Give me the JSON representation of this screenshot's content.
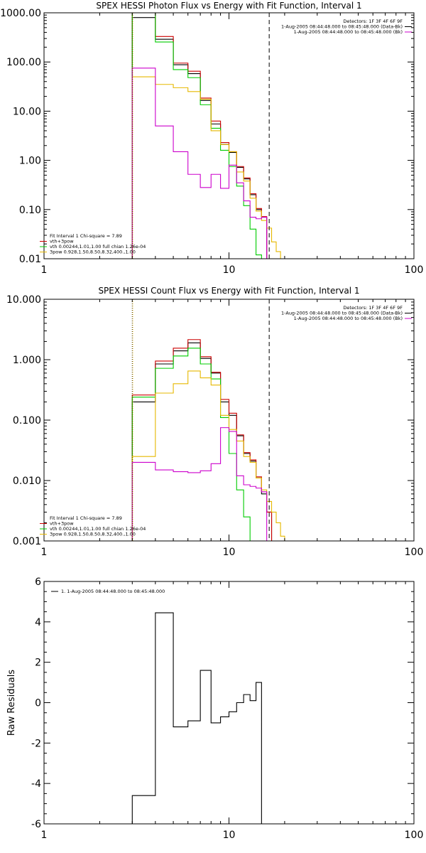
{
  "chart_data": [
    {
      "type": "line",
      "subtype": "step",
      "title": "SPEX HESSI Photon Flux vs Energy with Fit Function, Interval 1",
      "xscale": "log",
      "yscale": "log",
      "xlim": [
        1,
        100
      ],
      "ylim": [
        0.01,
        1000
      ],
      "xticks": [
        "1",
        "10",
        "100"
      ],
      "yticks": [
        "0.01",
        "0.10",
        "1.00",
        "10.00",
        "100.00",
        "1000.00"
      ],
      "edges": [
        3,
        4,
        5,
        6,
        7,
        8,
        9,
        10,
        11,
        12,
        13,
        14,
        15,
        16,
        17,
        18,
        19,
        20,
        21
      ],
      "series": [
        {
          "color": "#000000",
          "values": [
            800,
            290,
            88,
            58,
            16.5,
            5.5,
            2.1,
            1.45,
            0.72,
            0.42,
            0.2,
            0.1,
            0.07
          ]
        },
        {
          "color": "#cc0000",
          "values": [
            1000,
            330,
            95,
            65,
            18.5,
            6.3,
            2.3,
            1.5,
            0.75,
            0.44,
            0.21,
            0.105,
            0.072
          ]
        },
        {
          "name": "vth",
          "color": "#00cc00",
          "values": [
            1000,
            255,
            70,
            48,
            13.5,
            4.5,
            1.6,
            0.75,
            0.3,
            0.12,
            0.04,
            0.012,
            0.008
          ]
        },
        {
          "name": "3pow",
          "color": "#e6b800",
          "values": [
            50,
            35,
            30,
            25,
            17.5,
            4.0,
            2.1,
            1.5,
            0.58,
            0.38,
            0.17,
            0.093,
            0.06,
            0.042,
            0.022,
            0.014,
            0.01
          ]
        },
        {
          "color": "#cc00cc",
          "values": [
            75,
            5.0,
            1.5,
            0.52,
            0.28,
            0.52,
            0.27,
            0.8,
            0.35,
            0.15,
            0.07,
            0.065,
            0.07
          ]
        }
      ],
      "vlines": [
        {
          "x": 3.0,
          "style": "dotted",
          "color": "#000000"
        },
        {
          "x": 3.02,
          "style": "dotted",
          "color": "#e6b800"
        },
        {
          "x": 16.5,
          "style": "dashed",
          "color": "#000000"
        }
      ],
      "legend_top_right": [
        {
          "text": "Detectors: 1F 3F 4F 6F 9F",
          "color": null
        },
        {
          "text": "1-Aug-2005 08:44:48.000 to 08:45:48.000 (Data-Bk)",
          "color": "#000000"
        },
        {
          "text": "1-Aug-2005 08:44:48.000 to 08:45:48.000 (Bk)",
          "color": "#cc00cc"
        }
      ],
      "legend_bottom_left": [
        {
          "text": "Fit Interval 1   Chi-square = 7.89",
          "color": null
        },
        {
          "text": "vth+3pow",
          "color": "#cc0000"
        },
        {
          "text": "vth 0.00244,1.01,1.00  full chian 1.26e-04",
          "color": "#00cc00"
        },
        {
          "text": "3pow 0.928,1.50,8.50,8.32,400.,1.00",
          "color": "#e6b800"
        }
      ]
    },
    {
      "type": "line",
      "subtype": "step",
      "title": "SPEX HESSI Count Flux vs Energy with Fit Function, Interval 1",
      "xscale": "log",
      "yscale": "log",
      "xlim": [
        1,
        100
      ],
      "ylim": [
        0.001,
        10
      ],
      "xticks": [
        "1",
        "10",
        "100"
      ],
      "yticks": [
        "0.001",
        "0.010",
        "0.100",
        "1.000",
        "10.000"
      ],
      "edges": [
        3,
        4,
        5,
        6,
        7,
        8,
        9,
        10,
        11,
        12,
        13,
        14,
        15,
        16,
        17,
        18,
        19,
        20,
        21
      ],
      "series": [
        {
          "color": "#000000",
          "values": [
            0.2,
            0.85,
            1.4,
            1.9,
            1.05,
            0.6,
            0.2,
            0.12,
            0.055,
            0.028,
            0.021,
            0.011,
            0.006,
            0.003
          ]
        },
        {
          "color": "#cc0000",
          "values": [
            0.26,
            0.95,
            1.55,
            2.15,
            1.12,
            0.62,
            0.22,
            0.13,
            0.057,
            0.029,
            0.022,
            0.0115,
            0.0065,
            0.003
          ]
        },
        {
          "name": "vth",
          "color": "#00cc00",
          "values": [
            0.24,
            0.72,
            1.15,
            1.55,
            0.85,
            0.48,
            0.11,
            0.028,
            0.007,
            0.0025,
            0.001,
            0.0004
          ]
        },
        {
          "name": "3pow",
          "color": "#e6b800",
          "values": [
            0.025,
            0.28,
            0.4,
            0.65,
            0.5,
            0.38,
            0.12,
            0.07,
            0.045,
            0.025,
            0.02,
            0.011,
            0.007,
            0.0045,
            0.003,
            0.002,
            0.0012
          ]
        },
        {
          "color": "#cc00cc",
          "values": [
            0.02,
            0.015,
            0.014,
            0.0135,
            0.0145,
            0.019,
            0.075,
            0.065,
            0.012,
            0.0085,
            0.008,
            0.0075,
            0.0065,
            0.0005
          ]
        }
      ],
      "vlines": [
        {
          "x": 3.0,
          "style": "dotted",
          "color": "#000000"
        },
        {
          "x": 3.02,
          "style": "dotted",
          "color": "#e6b800"
        },
        {
          "x": 16.5,
          "style": "dashed",
          "color": "#000000"
        }
      ],
      "legend_top_right": [
        {
          "text": "Detectors: 1F 3F 4F 6F 9F",
          "color": null
        },
        {
          "text": "1-Aug-2005 08:44:48.000 to 08:45:48.000 (Data-Bk)",
          "color": "#000000"
        },
        {
          "text": "1-Aug-2005 08:44:48.000 to 08:45:48.000 (Bk)",
          "color": "#cc00cc"
        }
      ],
      "legend_bottom_left": [
        {
          "text": "Fit Interval 1   Chi-square = 7.89",
          "color": null
        },
        {
          "text": "vth+3pow",
          "color": "#cc0000"
        },
        {
          "text": "vth 0.00244,1.01,1.00  full chian 1.26e-04",
          "color": "#00cc00"
        },
        {
          "text": "3pow 0.928,1.50,8.50,8.32,400.,1.00",
          "color": "#e6b800"
        }
      ]
    },
    {
      "type": "line",
      "subtype": "step",
      "title": "",
      "xscale": "log",
      "yscale": "linear",
      "xlim": [
        1,
        100
      ],
      "ylim": [
        -6,
        6
      ],
      "xticks": [
        "1",
        "10",
        "100"
      ],
      "yticks": [
        "-6",
        "-4",
        "-2",
        "0",
        "2",
        "4",
        "6"
      ],
      "ylabel": "Raw Residuals",
      "edges": [
        3,
        4,
        5,
        6,
        7,
        8,
        9,
        10,
        11,
        12,
        13,
        14,
        15,
        16,
        17
      ],
      "series": [
        {
          "color": "#000000",
          "values": [
            -4.6,
            4.45,
            -1.2,
            -0.9,
            1.6,
            -1.0,
            -0.7,
            -0.45,
            0.0,
            0.4,
            0.1,
            1.0,
            -6.0
          ]
        }
      ],
      "legend_top_left": [
        {
          "text": "1. 1-Aug-2005 08:44:48.000 to 08:45:48.000",
          "color": "#000000"
        }
      ]
    }
  ]
}
